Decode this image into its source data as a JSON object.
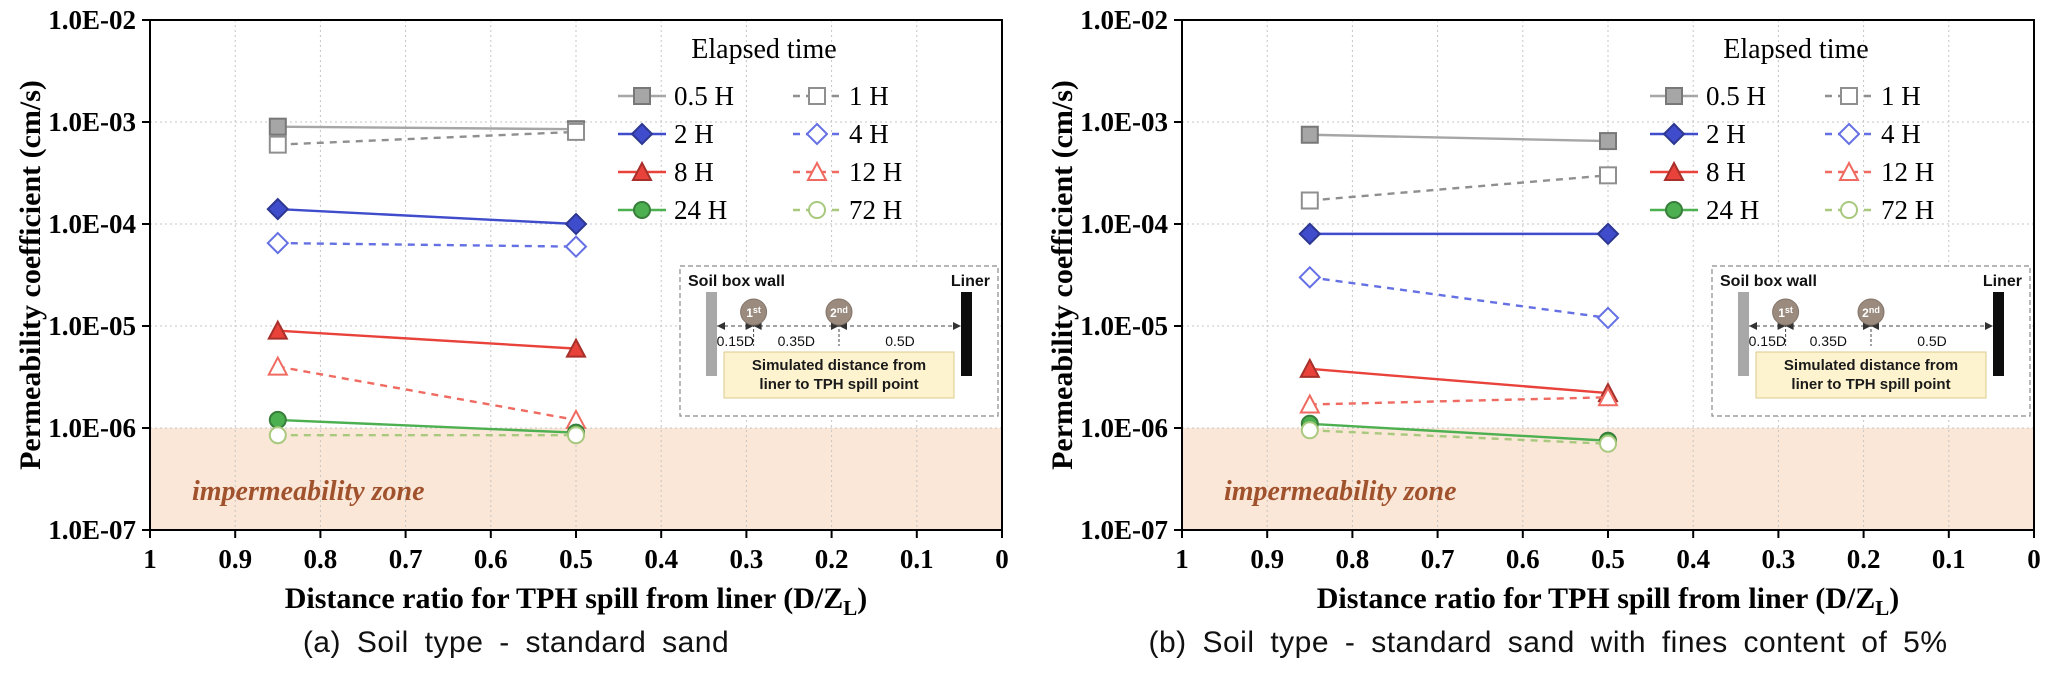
{
  "page": {
    "background": "#ffffff"
  },
  "shared": {
    "legend_title": "Elapsed time",
    "ylabel": "Permeability coefficient (cm/s)",
    "xlabel": "Distance ratio for TPH spill from liner (D/Z_L)",
    "y_ticks": [
      "1.0E-02",
      "1.0E-03",
      "1.0E-04",
      "1.0E-05",
      "1.0E-06",
      "1.0E-07"
    ],
    "x_ticks": [
      "1",
      "0.9",
      "0.8",
      "0.7",
      "0.6",
      "0.5",
      "0.4",
      "0.3",
      "0.2",
      "0.1",
      "0"
    ],
    "zone": {
      "label": "impermeability zone",
      "upper_value": "1.0E-06",
      "fill": "#fbe7d8",
      "text_color": "#a0522d"
    },
    "inset": {
      "wall_label": "Soil box wall",
      "liner_label": "Liner",
      "spill_points": [
        "1st",
        "2nd"
      ],
      "distance_labels": [
        "0.15D",
        "0.35D",
        "0.5D"
      ],
      "note_lines": [
        "Simulated distance from",
        "liner to TPH spill point"
      ],
      "note_fill": "#fdf3cf"
    }
  },
  "chart_data": [
    {
      "type": "line",
      "caption": "(a) Soil type - standard sand",
      "xlabel": "Distance ratio for TPH spill from liner (D/Z_L)",
      "ylabel": "Permeability coefficient (cm/s)",
      "legend_title": "Elapsed time",
      "legend_position": "top-right",
      "grid": true,
      "x_axis_reversed": true,
      "x_range": [
        1,
        0
      ],
      "y_scale": "log",
      "y_range": [
        "1.0E-07",
        "1.0E-02"
      ],
      "x": [
        0.85,
        0.5
      ],
      "impermeability_zone_below": 1e-06,
      "series": [
        {
          "name": "0.5 H",
          "marker": "square",
          "filled": true,
          "line": "solid",
          "color": "#a6a6a6",
          "values": [
            0.0009,
            0.00085
          ]
        },
        {
          "name": "1 H",
          "marker": "square",
          "filled": false,
          "line": "dashed",
          "color": "#8f8f8f",
          "values": [
            0.0006,
            0.0008
          ]
        },
        {
          "name": "2 H",
          "marker": "diamond",
          "filled": true,
          "line": "solid",
          "color": "#3f4ccb",
          "values": [
            0.00014,
            0.0001
          ]
        },
        {
          "name": "4 H",
          "marker": "diamond",
          "filled": false,
          "line": "dashed",
          "color": "#6470e3",
          "values": [
            6.5e-05,
            6e-05
          ]
        },
        {
          "name": "8 H",
          "marker": "triangle",
          "filled": true,
          "line": "solid",
          "color": "#e8423b",
          "values": [
            9e-06,
            6e-06
          ]
        },
        {
          "name": "12 H",
          "marker": "triangle",
          "filled": false,
          "line": "dashed",
          "color": "#ef6a60",
          "values": [
            4e-06,
            1.2e-06
          ]
        },
        {
          "name": "24 H",
          "marker": "circle",
          "filled": true,
          "line": "solid",
          "color": "#4caf50",
          "values": [
            1.2e-06,
            9e-07
          ]
        },
        {
          "name": "72 H",
          "marker": "circle",
          "filled": false,
          "line": "dashed",
          "color": "#a9c97e",
          "values": [
            8.5e-07,
            8.5e-07
          ]
        }
      ]
    },
    {
      "type": "line",
      "caption": "(b) Soil type - standard sand with fines content of 5%",
      "xlabel": "Distance ratio for TPH spill from liner (D/Z_L)",
      "ylabel": "Permeability coefficient (cm/s)",
      "legend_title": "Elapsed time",
      "legend_position": "top-right",
      "grid": true,
      "x_axis_reversed": true,
      "x_range": [
        1,
        0
      ],
      "y_scale": "log",
      "y_range": [
        "1.0E-07",
        "1.0E-02"
      ],
      "x": [
        0.85,
        0.5
      ],
      "impermeability_zone_below": 1e-06,
      "series": [
        {
          "name": "0.5 H",
          "marker": "square",
          "filled": true,
          "line": "solid",
          "color": "#a6a6a6",
          "values": [
            0.00075,
            0.00065
          ]
        },
        {
          "name": "1 H",
          "marker": "square",
          "filled": false,
          "line": "dashed",
          "color": "#8f8f8f",
          "values": [
            0.00017,
            0.0003
          ]
        },
        {
          "name": "2 H",
          "marker": "diamond",
          "filled": true,
          "line": "solid",
          "color": "#3f4ccb",
          "values": [
            8e-05,
            8e-05
          ]
        },
        {
          "name": "4 H",
          "marker": "diamond",
          "filled": false,
          "line": "dashed",
          "color": "#6470e3",
          "values": [
            3e-05,
            1.2e-05
          ]
        },
        {
          "name": "8 H",
          "marker": "triangle",
          "filled": true,
          "line": "solid",
          "color": "#e8423b",
          "values": [
            3.8e-06,
            2.2e-06
          ]
        },
        {
          "name": "12 H",
          "marker": "triangle",
          "filled": false,
          "line": "dashed",
          "color": "#ef6a60",
          "values": [
            1.7e-06,
            2e-06
          ]
        },
        {
          "name": "24 H",
          "marker": "circle",
          "filled": true,
          "line": "solid",
          "color": "#4caf50",
          "values": [
            1.1e-06,
            7.5e-07
          ]
        },
        {
          "name": "72 H",
          "marker": "circle",
          "filled": false,
          "line": "dashed",
          "color": "#a9c97e",
          "values": [
            9.5e-07,
            7e-07
          ]
        }
      ]
    }
  ]
}
